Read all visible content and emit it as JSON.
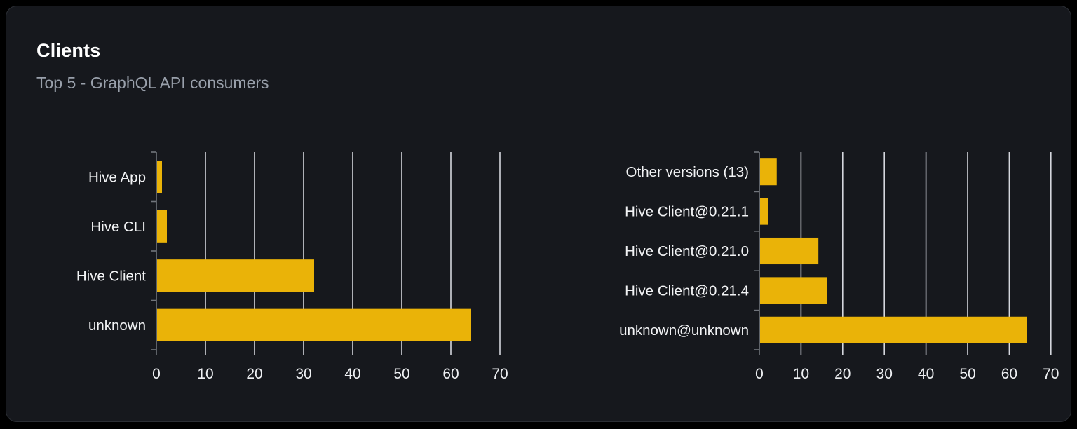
{
  "card": {
    "title": "Clients",
    "subtitle": "Top 5 - GraphQL API consumers"
  },
  "colors": {
    "page_bg": "#000000",
    "card_bg": "#16181d",
    "card_border": "#2b2e34",
    "title_text": "#ffffff",
    "subtitle_text": "#99a0ab",
    "bar_fill": "#eab308",
    "grid_line": "#d4d6dd",
    "axis_line": "#71757c",
    "category_text": "#f2f3f5",
    "tick_text": "#eef0f3"
  },
  "chart_data": [
    {
      "type": "bar",
      "orientation": "horizontal",
      "title": "",
      "categories": [
        "Hive App",
        "Hive CLI",
        "Hive Client",
        "unknown"
      ],
      "values": [
        1,
        2,
        32,
        64
      ],
      "xlabel": "",
      "ylabel": "",
      "xlim": [
        0,
        70
      ],
      "xticks": [
        0,
        10,
        20,
        30,
        40,
        50,
        60,
        70
      ],
      "grid": true,
      "legend": false
    },
    {
      "type": "bar",
      "orientation": "horizontal",
      "title": "",
      "categories": [
        "Other versions (13)",
        "Hive Client@0.21.1",
        "Hive Client@0.21.0",
        "Hive Client@0.21.4",
        "unknown@unknown"
      ],
      "values": [
        4,
        2,
        14,
        16,
        64
      ],
      "xlabel": "",
      "ylabel": "",
      "xlim": [
        0,
        70
      ],
      "xticks": [
        0,
        10,
        20,
        30,
        40,
        50,
        60,
        70
      ],
      "grid": true,
      "legend": false
    }
  ]
}
